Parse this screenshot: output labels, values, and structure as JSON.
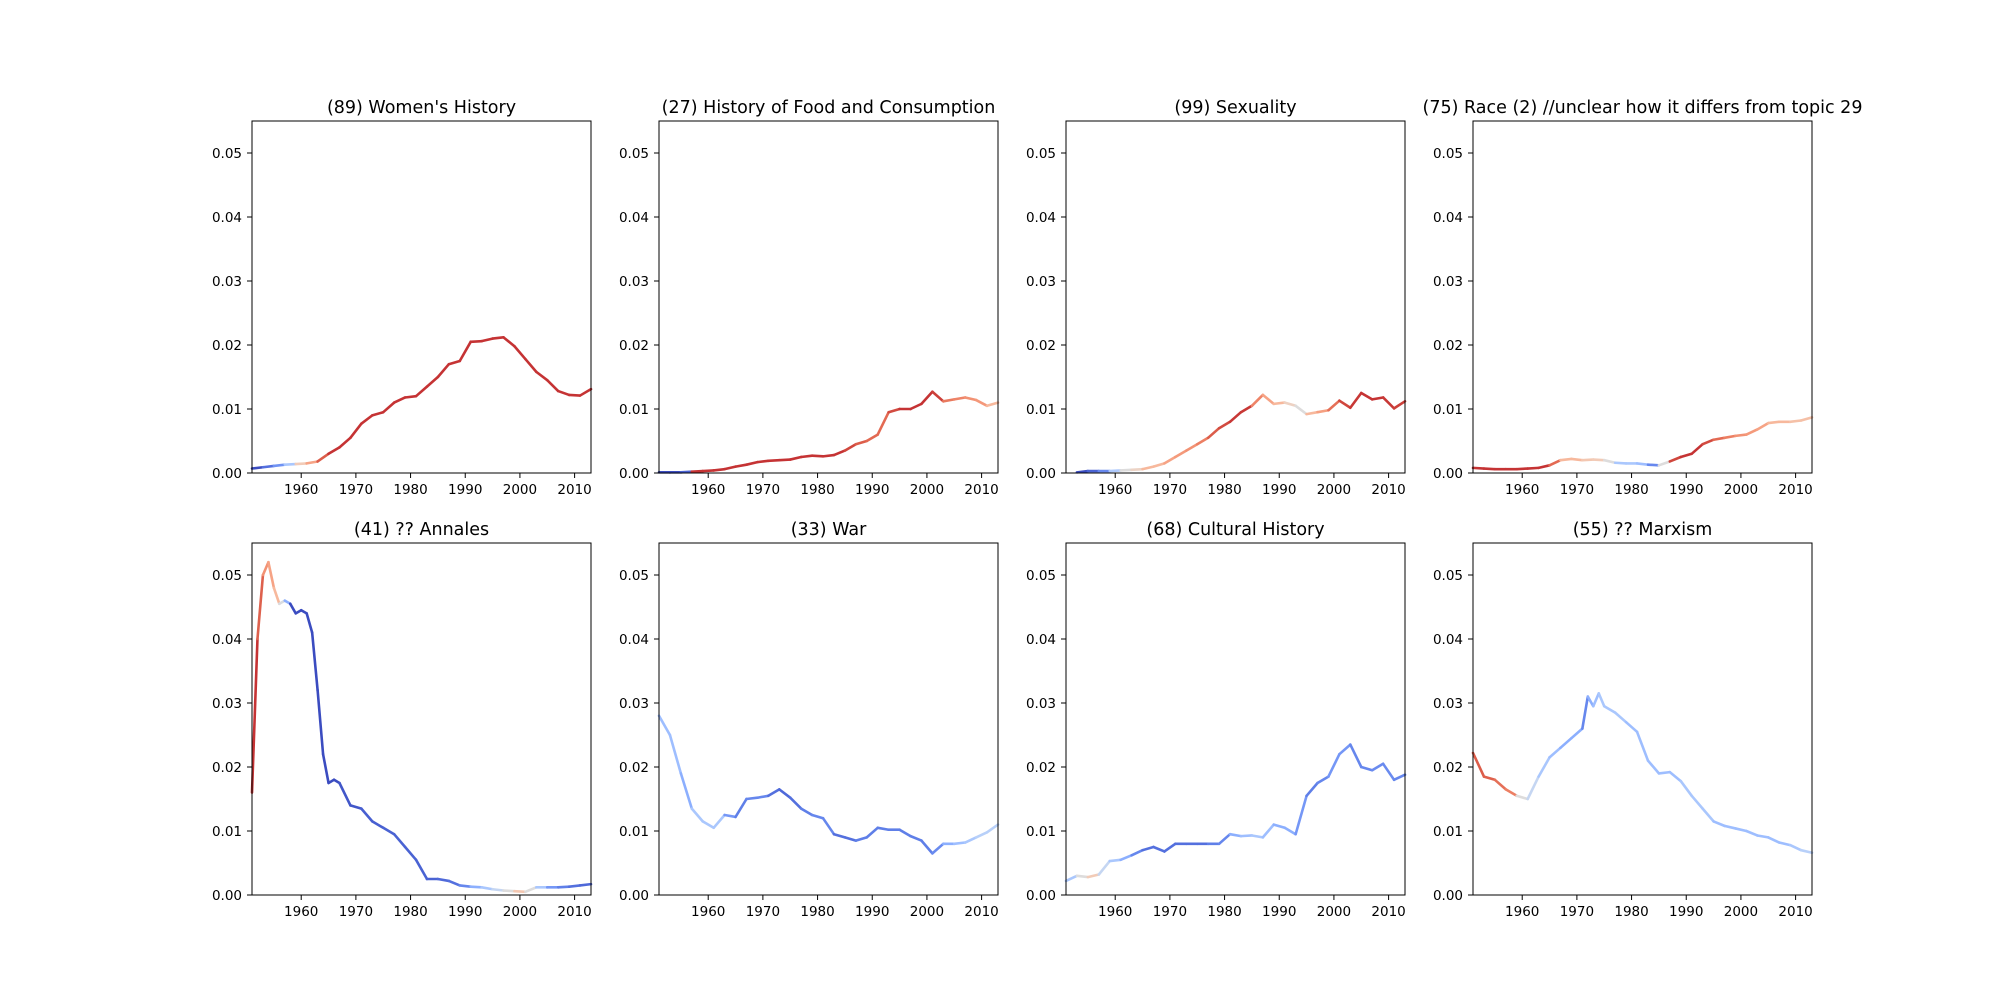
{
  "chart_data": [
    {
      "type": "line",
      "title": "(89) Women's History",
      "xlim": [
        1951,
        2013
      ],
      "ylim": [
        0,
        0.055
      ],
      "xticks": [
        "1960",
        "1970",
        "1980",
        "1990",
        "2000",
        "2010"
      ],
      "yticks": [
        "0.00",
        "0.01",
        "0.02",
        "0.03",
        "0.04",
        "0.05"
      ],
      "grid": false,
      "x": [
        1951,
        1953,
        1955,
        1957,
        1959,
        1961,
        1963,
        1965,
        1967,
        1969,
        1971,
        1973,
        1975,
        1977,
        1979,
        1981,
        1983,
        1985,
        1987,
        1989,
        1991,
        1993,
        1995,
        1997,
        1999,
        2001,
        2003,
        2005,
        2007,
        2009,
        2011,
        2013
      ],
      "values": [
        0.0007,
        0.0009,
        0.0011,
        0.0013,
        0.0014,
        0.0015,
        0.0018,
        0.003,
        0.004,
        0.0055,
        0.0077,
        0.009,
        0.0095,
        0.011,
        0.0118,
        0.012,
        0.0135,
        0.015,
        0.017,
        0.0175,
        0.0205,
        0.0206,
        0.021,
        0.0212,
        0.0198,
        0.0178,
        0.0158,
        0.0145,
        0.0128,
        0.0122,
        0.0121,
        0.0131
      ],
      "colors": [
        "#3b4cc0",
        "#5470de",
        "#7093f3",
        "#aac7fd",
        "#f2cbb7",
        "#f6a385",
        "#dc5d4a",
        "#c53334",
        "#c53334",
        "#c53334",
        "#c53334",
        "#c53334",
        "#c53334",
        "#c53334",
        "#c53334",
        "#c53334",
        "#c53334",
        "#c53334",
        "#c53334",
        "#c53334",
        "#c53334",
        "#c53334",
        "#c53334",
        "#c53334",
        "#c53334",
        "#c53334",
        "#c53334",
        "#c53334",
        "#c53334",
        "#c53334",
        "#c53334",
        "#c53334"
      ]
    },
    {
      "type": "line",
      "title": "(27) History of Food and Consumption",
      "xlim": [
        1951,
        2013
      ],
      "ylim": [
        0,
        0.055
      ],
      "xticks": [
        "1960",
        "1970",
        "1980",
        "1990",
        "2000",
        "2010"
      ],
      "yticks": [
        "0.00",
        "0.01",
        "0.02",
        "0.03",
        "0.04",
        "0.05"
      ],
      "grid": false,
      "x": [
        1951,
        1953,
        1955,
        1957,
        1959,
        1961,
        1963,
        1965,
        1967,
        1969,
        1971,
        1973,
        1975,
        1977,
        1979,
        1981,
        1983,
        1985,
        1987,
        1989,
        1991,
        1993,
        1995,
        1997,
        1999,
        2001,
        2003,
        2005,
        2007,
        2009,
        2011,
        2013
      ],
      "values": [
        0.0001,
        0.0001,
        0.0001,
        0.0002,
        0.0003,
        0.0004,
        0.0006,
        0.001,
        0.0013,
        0.0017,
        0.0019,
        0.002,
        0.0021,
        0.0025,
        0.0027,
        0.0026,
        0.0028,
        0.0035,
        0.0045,
        0.005,
        0.006,
        0.0095,
        0.01,
        0.01,
        0.0108,
        0.0127,
        0.0112,
        0.0115,
        0.0118,
        0.0114,
        0.0105,
        0.011
      ],
      "colors": [
        "#3b4cc0",
        "#3b4cc0",
        "#4961d2",
        "#c53334",
        "#c53334",
        "#c53334",
        "#c53334",
        "#c53334",
        "#c53334",
        "#c53334",
        "#c53334",
        "#c53334",
        "#c53334",
        "#c53334",
        "#c53334",
        "#c53334",
        "#c53334",
        "#d0473d",
        "#dc5d4a",
        "#e26952",
        "#e36a53",
        "#d24b40",
        "#c53334",
        "#c53334",
        "#c53334",
        "#cc403a",
        "#e97a5f",
        "#ee8468",
        "#f29274",
        "#f4987a",
        "#f7b89c",
        "#f7b89c"
      ]
    },
    {
      "type": "line",
      "title": "(99) Sexuality",
      "xlim": [
        1951,
        2013
      ],
      "ylim": [
        0,
        0.055
      ],
      "xticks": [
        "1960",
        "1970",
        "1980",
        "1990",
        "2000",
        "2010"
      ],
      "yticks": [
        "0.00",
        "0.01",
        "0.02",
        "0.03",
        "0.04",
        "0.05"
      ],
      "grid": false,
      "x": [
        1953,
        1955,
        1957,
        1959,
        1961,
        1963,
        1965,
        1967,
        1969,
        1971,
        1973,
        1975,
        1977,
        1979,
        1981,
        1983,
        1985,
        1987,
        1989,
        1991,
        1993,
        1995,
        1997,
        1999,
        2001,
        2003,
        2005,
        2007,
        2009,
        2011,
        2013
      ],
      "values": [
        0.0001,
        0.0003,
        0.0003,
        0.0003,
        0.0004,
        0.0005,
        0.0006,
        0.001,
        0.0015,
        0.0025,
        0.0035,
        0.0045,
        0.0055,
        0.007,
        0.008,
        0.0095,
        0.0105,
        0.0122,
        0.0108,
        0.011,
        0.0105,
        0.0092,
        0.0095,
        0.0098,
        0.0113,
        0.0102,
        0.0125,
        0.0115,
        0.0118,
        0.0101,
        0.0112
      ],
      "colors": [
        "#3b4cc0",
        "#4a63d3",
        "#6788ee",
        "#aec9fc",
        "#dddcdc",
        "#ecd3c5",
        "#f7b89c",
        "#f7b89c",
        "#f6a385",
        "#f49a7b",
        "#f29274",
        "#ec7f63",
        "#dc5d4a",
        "#d24b40",
        "#c83836",
        "#c83836",
        "#ee8468",
        "#f6a385",
        "#f7b89c",
        "#edd1c2",
        "#dddcdc",
        "#f7b89c",
        "#f5a081",
        "#e57058",
        "#d0473d",
        "#c83836",
        "#c53334",
        "#c53334",
        "#c83836",
        "#cc403a",
        "#d24b40"
      ]
    },
    {
      "type": "line",
      "title": "(75) Race (2) //unclear how it differs from topic 29",
      "xlim": [
        1951,
        2013
      ],
      "ylim": [
        0,
        0.055
      ],
      "xticks": [
        "1960",
        "1970",
        "1980",
        "1990",
        "2000",
        "2010"
      ],
      "yticks": [
        "0.00",
        "0.01",
        "0.02",
        "0.03",
        "0.04",
        "0.05"
      ],
      "grid": false,
      "x": [
        1951,
        1953,
        1955,
        1957,
        1959,
        1961,
        1963,
        1965,
        1967,
        1969,
        1971,
        1973,
        1975,
        1977,
        1979,
        1981,
        1983,
        1985,
        1987,
        1989,
        1991,
        1993,
        1995,
        1997,
        1999,
        2001,
        2003,
        2005,
        2007,
        2009,
        2011,
        2013
      ],
      "values": [
        0.0008,
        0.0007,
        0.0006,
        0.0006,
        0.0006,
        0.0007,
        0.0008,
        0.0012,
        0.002,
        0.0022,
        0.002,
        0.0021,
        0.002,
        0.0016,
        0.0015,
        0.0015,
        0.0013,
        0.0012,
        0.0018,
        0.0025,
        0.003,
        0.0045,
        0.0052,
        0.0055,
        0.0058,
        0.006,
        0.0068,
        0.0078,
        0.008,
        0.008,
        0.0082,
        0.0087
      ],
      "colors": [
        "#c53334",
        "#c53334",
        "#c53334",
        "#c53334",
        "#c53334",
        "#c53334",
        "#c53334",
        "#e36a53",
        "#f7b89c",
        "#f7b89c",
        "#f3c7b1",
        "#f2cbb7",
        "#dddcdc",
        "#aac7fd",
        "#aac7fd",
        "#9ebeff",
        "#6788ee",
        "#dddcdc",
        "#d0473d",
        "#c53334",
        "#c53334",
        "#d24b40",
        "#e36a53",
        "#ec7f63",
        "#f29274",
        "#f49a7b",
        "#f6a385",
        "#f7b89c",
        "#f7b89c",
        "#f5c0a7",
        "#f5c0a7",
        "#f2cbb7"
      ]
    },
    {
      "type": "line",
      "title": "(41) ?? Annales",
      "xlim": [
        1951,
        2013
      ],
      "ylim": [
        0,
        0.055
      ],
      "xticks": [
        "1960",
        "1970",
        "1980",
        "1990",
        "2000",
        "2010"
      ],
      "yticks": [
        "0.00",
        "0.01",
        "0.02",
        "0.03",
        "0.04",
        "0.05"
      ],
      "grid": false,
      "x": [
        1951,
        1952,
        1953,
        1954,
        1955,
        1956,
        1957,
        1958,
        1959,
        1960,
        1961,
        1962,
        1963,
        1964,
        1965,
        1966,
        1967,
        1969,
        1971,
        1973,
        1975,
        1977,
        1979,
        1981,
        1983,
        1985,
        1987,
        1989,
        1991,
        1993,
        1995,
        1997,
        1999,
        2001,
        2003,
        2005,
        2007,
        2009,
        2011,
        2013
      ],
      "values": [
        0.016,
        0.04,
        0.05,
        0.052,
        0.048,
        0.0455,
        0.046,
        0.0455,
        0.044,
        0.0445,
        0.044,
        0.041,
        0.032,
        0.022,
        0.0175,
        0.018,
        0.0175,
        0.014,
        0.0135,
        0.0115,
        0.0105,
        0.0095,
        0.0075,
        0.0055,
        0.0025,
        0.0025,
        0.0022,
        0.0015,
        0.0013,
        0.0012,
        0.0009,
        0.0007,
        0.0006,
        0.0005,
        0.0012,
        0.0012,
        0.0012,
        0.0013,
        0.0015,
        0.0017
      ],
      "colors": [
        "#c53334",
        "#de614d",
        "#f29274",
        "#f6a385",
        "#f7b89c",
        "#d9dce1",
        "#8caffe",
        "#3b4cc0",
        "#3b4cc0",
        "#3b4cc0",
        "#3b4cc0",
        "#3b4cc0",
        "#3b4cc0",
        "#3b4cc0",
        "#3b4cc0",
        "#3b4cc0",
        "#4257c9",
        "#4257c9",
        "#485fd1",
        "#485fd1",
        "#4a63d3",
        "#4a63d3",
        "#4a63d3",
        "#4a63d3",
        "#4a63d3",
        "#4f69d9",
        "#5470de",
        "#6687ed",
        "#8caffe",
        "#aac7fd",
        "#c5d6f2",
        "#dddcdc",
        "#f3c7b1",
        "#dddcdc",
        "#aac7fd",
        "#7597f6",
        "#5f7fe8",
        "#5470de",
        "#4f69d9",
        "#4f69d9"
      ]
    },
    {
      "type": "line",
      "title": "(33) War",
      "xlim": [
        1951,
        2013
      ],
      "ylim": [
        0,
        0.055
      ],
      "xticks": [
        "1960",
        "1970",
        "1980",
        "1990",
        "2000",
        "2010"
      ],
      "yticks": [
        "0.00",
        "0.01",
        "0.02",
        "0.03",
        "0.04",
        "0.05"
      ],
      "grid": false,
      "x": [
        1951,
        1953,
        1955,
        1957,
        1959,
        1961,
        1963,
        1965,
        1967,
        1969,
        1971,
        1973,
        1975,
        1977,
        1979,
        1981,
        1983,
        1985,
        1987,
        1989,
        1991,
        1993,
        1995,
        1997,
        1999,
        2001,
        2003,
        2005,
        2007,
        2009,
        2011,
        2013
      ],
      "values": [
        0.028,
        0.025,
        0.019,
        0.0135,
        0.0115,
        0.0105,
        0.0125,
        0.0122,
        0.015,
        0.0152,
        0.0155,
        0.0165,
        0.0152,
        0.0135,
        0.0125,
        0.012,
        0.0095,
        0.009,
        0.0085,
        0.009,
        0.0105,
        0.0102,
        0.0102,
        0.0092,
        0.0085,
        0.0065,
        0.008,
        0.008,
        0.0082,
        0.009,
        0.0098,
        0.011
      ],
      "colors": [
        "#9ebeff",
        "#9ebeff",
        "#8caffe",
        "#aac7fd",
        "#aac7fd",
        "#aac7fd",
        "#7597f6",
        "#5f7fe8",
        "#6687ed",
        "#6687ed",
        "#5470de",
        "#4f69d9",
        "#5470de",
        "#5f7fe8",
        "#6687ed",
        "#6687ed",
        "#5470de",
        "#5470de",
        "#5f7fe8",
        "#5f7fe8",
        "#5f7fe8",
        "#5f7fe8",
        "#5f7fe8",
        "#5f7fe8",
        "#5f7fe8",
        "#6a8bef",
        "#8caffe",
        "#9ebeff",
        "#aac7fd",
        "#b8d0f9",
        "#b8d0f9",
        "#b8d0f9"
      ]
    },
    {
      "type": "line",
      "title": "(68) Cultural History",
      "xlim": [
        1951,
        2013
      ],
      "ylim": [
        0,
        0.055
      ],
      "xticks": [
        "1960",
        "1970",
        "1980",
        "1990",
        "2000",
        "2010"
      ],
      "yticks": [
        "0.00",
        "0.01",
        "0.02",
        "0.03",
        "0.04",
        "0.05"
      ],
      "grid": false,
      "x": [
        1951,
        1953,
        1955,
        1957,
        1959,
        1961,
        1963,
        1965,
        1967,
        1969,
        1971,
        1973,
        1975,
        1977,
        1979,
        1981,
        1983,
        1985,
        1987,
        1989,
        1991,
        1993,
        1995,
        1997,
        1999,
        2001,
        2003,
        2005,
        2007,
        2009,
        2011,
        2013
      ],
      "values": [
        0.0022,
        0.003,
        0.0028,
        0.0032,
        0.0053,
        0.0055,
        0.0062,
        0.007,
        0.0075,
        0.0068,
        0.008,
        0.008,
        0.008,
        0.008,
        0.008,
        0.0095,
        0.0092,
        0.0093,
        0.009,
        0.011,
        0.0105,
        0.0095,
        0.0155,
        0.0175,
        0.0185,
        0.022,
        0.0235,
        0.02,
        0.0195,
        0.0205,
        0.018,
        0.0188
      ],
      "colors": [
        "#aac7fd",
        "#dddcdc",
        "#f2cbb7",
        "#c5d6f2",
        "#aac7fd",
        "#8caffe",
        "#6687ed",
        "#5470de",
        "#5470de",
        "#5470de",
        "#5470de",
        "#5470de",
        "#5470de",
        "#5f7fe8",
        "#6687ed",
        "#8caffe",
        "#9ebeff",
        "#aac7fd",
        "#9ebeff",
        "#8caffe",
        "#8caffe",
        "#7597f6",
        "#5f7fe8",
        "#6687ed",
        "#7597f6",
        "#7597f6",
        "#6687ed",
        "#6687ed",
        "#6a8bef",
        "#6a8bef",
        "#6687ed",
        "#6687ed"
      ]
    },
    {
      "type": "line",
      "title": "(55) ?? Marxism",
      "xlim": [
        1951,
        2013
      ],
      "ylim": [
        0,
        0.055
      ],
      "xticks": [
        "1960",
        "1970",
        "1980",
        "1990",
        "2000",
        "2010"
      ],
      "yticks": [
        "0.00",
        "0.01",
        "0.02",
        "0.03",
        "0.04",
        "0.05"
      ],
      "grid": false,
      "x": [
        1951,
        1953,
        1955,
        1957,
        1959,
        1961,
        1963,
        1965,
        1967,
        1969,
        1971,
        1972,
        1973,
        1974,
        1975,
        1977,
        1979,
        1981,
        1983,
        1985,
        1987,
        1989,
        1991,
        1993,
        1995,
        1997,
        1999,
        2001,
        2003,
        2005,
        2007,
        2009,
        2011,
        2013
      ],
      "values": [
        0.0222,
        0.0185,
        0.018,
        0.0165,
        0.0155,
        0.015,
        0.0185,
        0.0215,
        0.023,
        0.0245,
        0.026,
        0.031,
        0.0295,
        0.0315,
        0.0295,
        0.0285,
        0.027,
        0.0255,
        0.021,
        0.019,
        0.0192,
        0.0178,
        0.0155,
        0.0135,
        0.0115,
        0.0108,
        0.0104,
        0.01,
        0.0093,
        0.009,
        0.0082,
        0.0078,
        0.007,
        0.0066
      ],
      "colors": [
        "#dc5d4a",
        "#de614d",
        "#e57058",
        "#ec7f63",
        "#dddcdc",
        "#c5d6f2",
        "#aac7fd",
        "#9ebeff",
        "#8caffe",
        "#8caffe",
        "#6687ed",
        "#8caffe",
        "#9ebeff",
        "#aac7fd",
        "#aac7fd",
        "#aac7fd",
        "#9ebeff",
        "#9ebeff",
        "#9ebeff",
        "#9ebeff",
        "#9ebeff",
        "#aac7fd",
        "#aac7fd",
        "#aac7fd",
        "#9ebeff",
        "#9ebeff",
        "#9ebeff",
        "#9ebeff",
        "#9ebeff",
        "#9ebeff",
        "#9ebeff",
        "#aac7fd",
        "#b8d0f9",
        "#b8d0f9"
      ]
    }
  ]
}
